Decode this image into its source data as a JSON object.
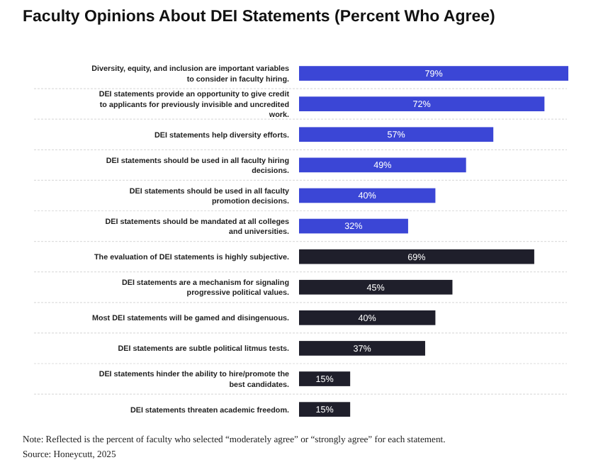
{
  "chart_data": {
    "type": "bar",
    "orientation": "horizontal",
    "title": "Faculty Opinions About DEI Statements (Percent Who Agree)",
    "categories": [
      "Diversity, equity, and inclusion are important variables to consider in faculty hiring.",
      "DEI statements provide an opportunity to give credit to applicants for previously invisible and uncredited work.",
      "DEI statements help diversity efforts.",
      "DEI statements should be used in all faculty hiring decisions.",
      "DEI statements should be used in all faculty promotion decisions.",
      "DEI statements should be mandated at all colleges and universities.",
      "The evaluation of DEI statements is highly subjective.",
      "DEI statements are a mechanism for signaling progressive political values.",
      "Most DEI statements will be gamed and disingenuous.",
      "DEI statements are subtle political litmus tests.",
      "DEI statements hinder the ability to hire/promote the best candidates.",
      "DEI statements threaten academic freedom."
    ],
    "values": [
      79,
      72,
      57,
      49,
      40,
      32,
      69,
      45,
      40,
      37,
      15,
      15
    ],
    "colors": [
      "#3b46d6",
      "#3b46d6",
      "#3b46d6",
      "#3b46d6",
      "#3b46d6",
      "#3b46d6",
      "#1f1f2b",
      "#1f1f2b",
      "#1f1f2b",
      "#1f1f2b",
      "#1f1f2b",
      "#1f1f2b"
    ],
    "value_labels": [
      "79%",
      "72%",
      "57%",
      "49%",
      "40%",
      "32%",
      "69%",
      "45%",
      "40%",
      "37%",
      "15%",
      "15%"
    ],
    "annotations": [
      "Note: Reflected is the percent of faculty who selected “moderately agree” or “strongly agree” for each statement.",
      "Source: Honeycutt, 2025"
    ]
  }
}
